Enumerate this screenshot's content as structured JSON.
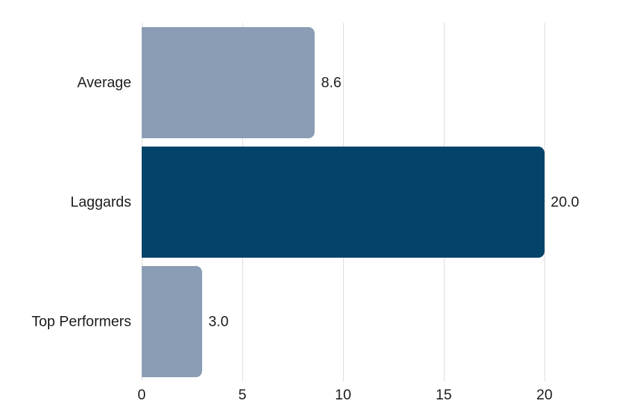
{
  "chart_data": {
    "type": "bar",
    "orientation": "horizontal",
    "title": "",
    "xlabel": "",
    "ylabel": "",
    "categories": [
      "Average",
      "Laggards",
      "Top Performers"
    ],
    "values": [
      8.6,
      20.0,
      3.0
    ],
    "value_labels": [
      "8.6",
      "20.0",
      "3.0"
    ],
    "bar_colors": [
      "#8b9db4",
      "#04436a",
      "#8b9db4"
    ],
    "x_ticks": [
      0,
      5,
      10,
      15,
      20
    ],
    "x_tick_labels": [
      "0",
      "5",
      "10",
      "15",
      "20"
    ],
    "xlim": [
      0,
      23.9
    ],
    "grid": "vertical-only",
    "legend": "none",
    "colors": {
      "bar_default": "#8b9db4",
      "bar_highlight": "#04436a",
      "gridline": "#dcdcdc",
      "text": "#1d1d1d",
      "background": "#ffffff"
    }
  }
}
